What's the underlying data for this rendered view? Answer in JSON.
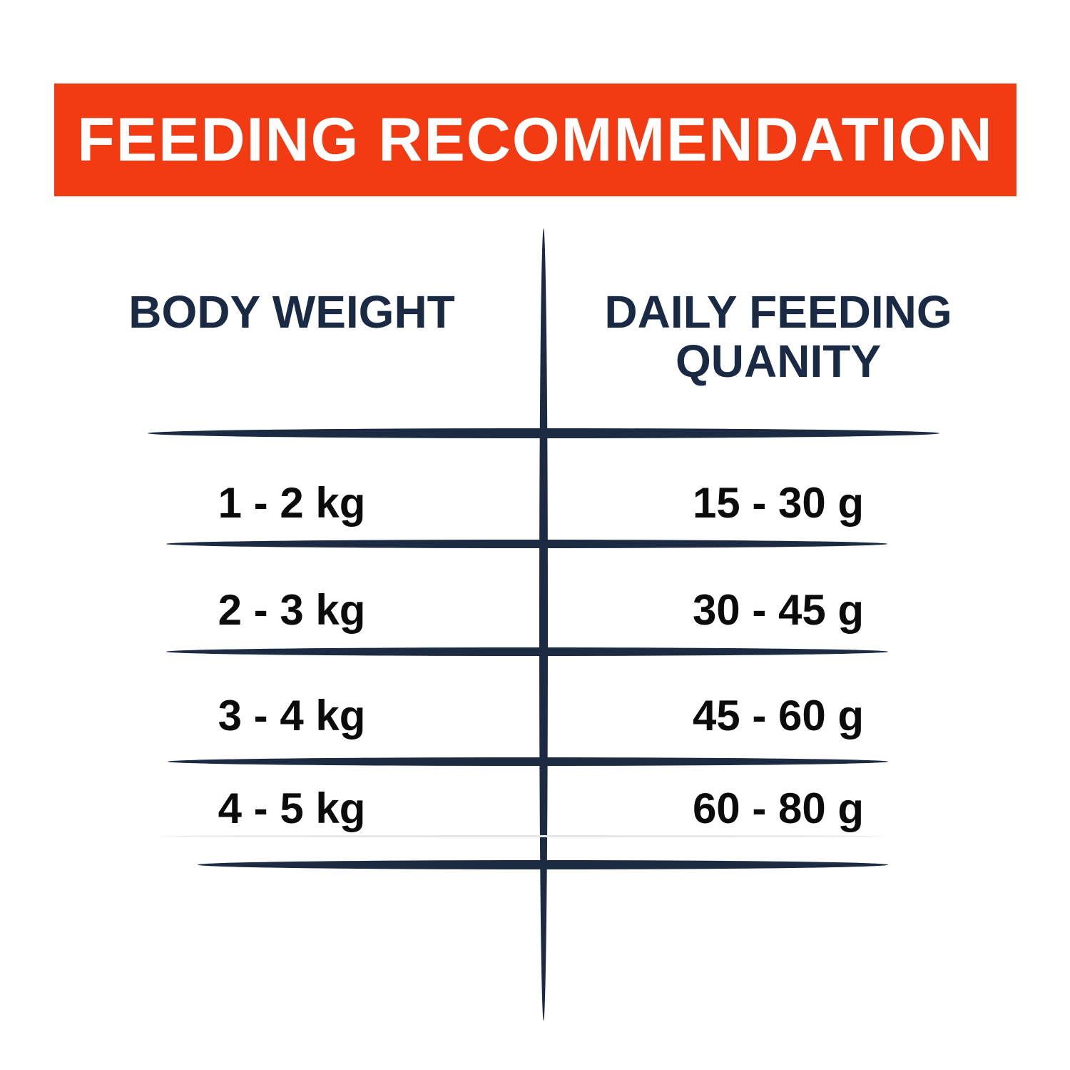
{
  "banner": {
    "title": "FEEDING RECOMMENDATION"
  },
  "table": {
    "columns": [
      {
        "label": "BODY WEIGHT"
      },
      {
        "label_line1": "DAILY FEEDING",
        "label_line2": "QUANITY"
      }
    ],
    "rows": [
      {
        "weight": "1 - 2 kg",
        "quantity": "15 - 30 g"
      },
      {
        "weight": "2 - 3 kg",
        "quantity": "30 - 45 g"
      },
      {
        "weight": "3 - 4 kg",
        "quantity": "45 - 60 g"
      },
      {
        "weight": "4 - 5 kg",
        "quantity": "60 - 80 g"
      }
    ]
  },
  "colors": {
    "banner_bg": "#F23B12",
    "banner_text": "#FFFFFF",
    "divider": "#1D2B42",
    "header_text": "#1B2A44",
    "data_text": "#0B0B0B",
    "faint_divider": "#E4E6E8"
  },
  "chart_data": {
    "type": "table",
    "title": "FEEDING RECOMMENDATION",
    "columns": [
      "BODY WEIGHT",
      "DAILY FEEDING QUANITY"
    ],
    "rows": [
      [
        "1 - 2 kg",
        "15 - 30 g"
      ],
      [
        "2 - 3 kg",
        "30 - 45 g"
      ],
      [
        "3 - 4 kg",
        "45 - 60 g"
      ],
      [
        "4 - 5 kg",
        "60 - 80 g"
      ]
    ],
    "body_weight_kg_ranges": [
      [
        1,
        2
      ],
      [
        2,
        3
      ],
      [
        3,
        4
      ],
      [
        4,
        5
      ]
    ],
    "daily_feeding_g_ranges": [
      [
        15,
        30
      ],
      [
        30,
        45
      ],
      [
        45,
        60
      ],
      [
        60,
        80
      ]
    ]
  }
}
